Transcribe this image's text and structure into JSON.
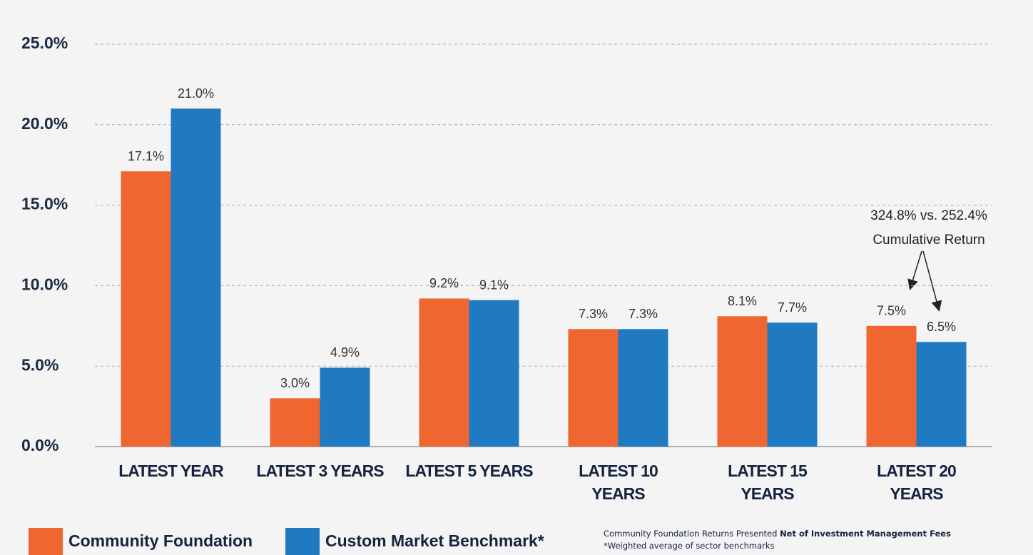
{
  "chart_data": {
    "type": "bar",
    "categories": [
      "LATEST YEAR",
      "LATEST 3 YEARS",
      "LATEST 5 YEARS",
      "LATEST 10 YEARS",
      "LATEST 15 YEARS",
      "LATEST 20 YEARS"
    ],
    "series": [
      {
        "name": "Community Foundation",
        "color": "#ef6631",
        "values": [
          17.1,
          3.0,
          9.2,
          7.3,
          8.1,
          7.5
        ],
        "value_labels": [
          "17.1%",
          "3.0%",
          "9.2%",
          "7.3%",
          "8.1%",
          "7.5%"
        ]
      },
      {
        "name": "Custom Market Benchmark*",
        "color": "#1f7ac2",
        "values": [
          21.0,
          4.9,
          9.1,
          7.3,
          7.7,
          6.5
        ],
        "value_labels": [
          "21.0%",
          "4.9%",
          "9.1%",
          "7.3%",
          "7.7%",
          "6.5%"
        ]
      }
    ],
    "ylim": [
      0,
      25
    ],
    "yticks": [
      {
        "value": 0,
        "label": "0.0%"
      },
      {
        "value": 5,
        "label": "5.0%"
      },
      {
        "value": 10,
        "label": "10.0%"
      },
      {
        "value": 15,
        "label": "15.0%"
      },
      {
        "value": 20,
        "label": "20.0%"
      },
      {
        "value": 25,
        "label": "25.0%"
      }
    ],
    "grid": true,
    "annotation": [
      "324.8% vs. 252.4%",
      "Cumulative Return"
    ],
    "footnote": [
      "Community Foundation Returns Presented",
      "Net of Investment Management Fees",
      "*Weighted average of sector benchmarks"
    ]
  }
}
